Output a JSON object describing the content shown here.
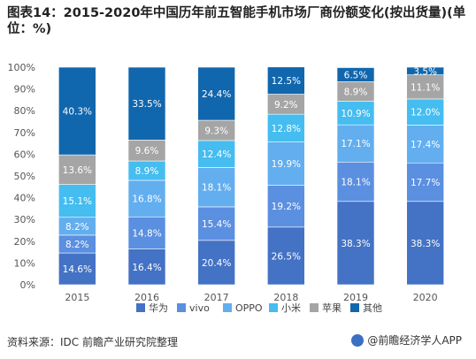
{
  "title": "图表14：2015-2020年中国历年前五智能手机市场厂商份额变化(按出货量)(单位：%)",
  "source": "资料来源：IDC 前瞻产业研究院整理",
  "watermark": "@前瞻经济学人APP",
  "chart_data": {
    "type": "bar",
    "stacked": true,
    "categories": [
      "2015",
      "2016",
      "2017",
      "2018",
      "2019",
      "2020"
    ],
    "ylim": [
      0,
      100
    ],
    "yticks": [
      "0%",
      "10%",
      "20%",
      "30%",
      "40%",
      "50%",
      "60%",
      "70%",
      "80%",
      "90%",
      "100%"
    ],
    "legend_position": "bottom",
    "series": [
      {
        "name": "华为",
        "color": "#4472c4",
        "values": [
          14.6,
          16.4,
          20.4,
          26.5,
          38.3,
          38.3
        ]
      },
      {
        "name": "vivo",
        "color": "#5b8fe0",
        "values": [
          8.2,
          14.8,
          15.4,
          19.2,
          18.1,
          17.7
        ]
      },
      {
        "name": "OPPO",
        "color": "#62aeef",
        "values": [
          8.2,
          16.8,
          18.1,
          19.9,
          17.1,
          17.4
        ]
      },
      {
        "name": "小米",
        "color": "#45bdf0",
        "values": [
          15.1,
          8.9,
          12.4,
          12.8,
          10.9,
          12.0
        ]
      },
      {
        "name": "苹果",
        "color": "#a5a5a5",
        "values": [
          13.6,
          9.6,
          9.3,
          9.2,
          8.9,
          11.1
        ]
      },
      {
        "name": "其他",
        "color": "#1167ad",
        "values": [
          40.3,
          33.5,
          24.4,
          12.5,
          6.5,
          3.5
        ]
      }
    ],
    "data_labels": [
      [
        "14.6%",
        "16.4%",
        "20.4%",
        "26.5%",
        "38.3%",
        "38.3%"
      ],
      [
        "8.2%",
        "14.8%",
        "15.4%",
        "19.2%",
        "18.1%",
        "17.7%"
      ],
      [
        "8.2%",
        "16.8%",
        "18.1%",
        "19.9%",
        "17.1%",
        "17.4%"
      ],
      [
        "15.1%",
        "8.9%",
        "12.4%",
        "12.8%",
        "10.9%",
        "12.0%"
      ],
      [
        "13.6%",
        "9.6%",
        "9.3%",
        "9.2%",
        "8.9%",
        "11.1%"
      ],
      [
        "40.3%",
        "33.5%",
        "24.4%",
        "12.5%",
        "6.5%",
        "3.5%"
      ]
    ]
  }
}
